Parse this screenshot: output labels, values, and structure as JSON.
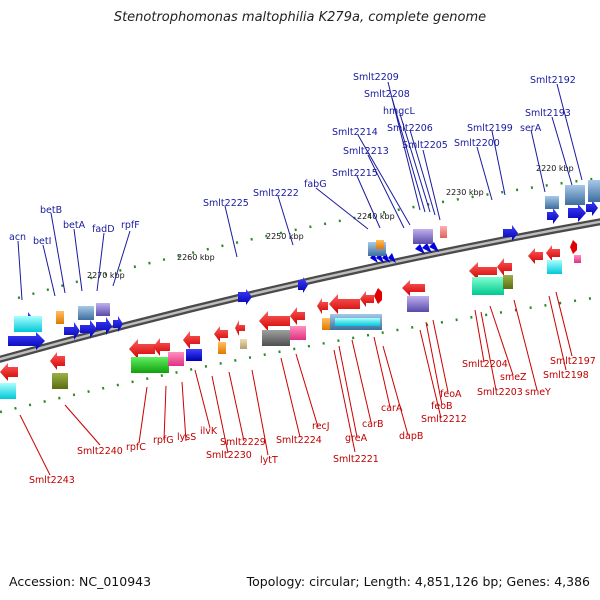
{
  "title": "Stenotrophomonas maltophilia K279a, complete genome",
  "footer": {
    "accession": "Accession: NC_010943",
    "summary": "Topology: circular; Length: 4,851,126 bp; Genes: 4,386"
  },
  "colors": {
    "top_labels": "#1a1aa0",
    "bottom_labels": "#c00000",
    "backbone": "#6e6e6e"
  },
  "kbp_ticks": [
    "2220 kbp",
    "2230 kbp",
    "2240 kbp",
    "2250 kbp",
    "2260 kbp",
    "2270 kbp"
  ],
  "top_labels": [
    "Smlt2209",
    "Smlt2192",
    "Smlt2208",
    "hmgcL",
    "Smlt2193",
    "Smlt2206",
    "Smlt2214",
    "Smlt2199",
    "serA",
    "Smlt2213",
    "Smlt2205",
    "Smlt2200",
    "Smlt2215",
    "fabG",
    "Smlt2222",
    "Smlt2225",
    "betB",
    "acn",
    "betA",
    "rpfF",
    "fadD",
    "betI"
  ],
  "bottom_labels": [
    "Smlt2197",
    "Smlt2204",
    "smeZ",
    "Smlt2198",
    "Smlt2203",
    "smeY",
    "feoA",
    "carA",
    "feoB",
    "recJ",
    "carB",
    "Smlt2212",
    "Smlt2224",
    "greA",
    "dapB",
    "Smlt2229",
    "Smlt2221",
    "lytT",
    "Smlt2230",
    "ilvK",
    "lysS",
    "rpfG",
    "rpfC",
    "Smlt2240",
    "Smlt2243"
  ]
}
